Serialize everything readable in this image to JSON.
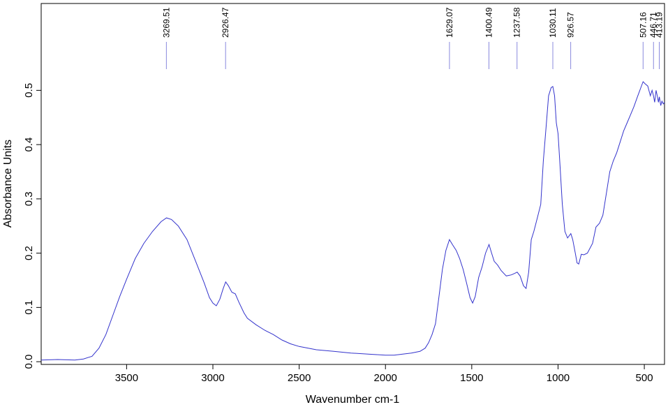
{
  "chart_data": {
    "type": "line",
    "xlabel": "Wavenumber cm-1",
    "ylabel": "Absorbance Units",
    "x_reversed": true,
    "xlim": [
      3995,
      383
    ],
    "ylim": [
      -0.005,
      0.66
    ],
    "x_ticks": [
      {
        "value": 3500,
        "label": "3500"
      },
      {
        "value": 3000,
        "label": "3000"
      },
      {
        "value": 2500,
        "label": "2500"
      },
      {
        "value": 2000,
        "label": "2000"
      },
      {
        "value": 1500,
        "label": "1500"
      },
      {
        "value": 1000,
        "label": "1000"
      },
      {
        "value": 500,
        "label": "500"
      }
    ],
    "y_ticks": [
      {
        "value": 0.0,
        "label": "0.0"
      },
      {
        "value": 0.1,
        "label": "0.1"
      },
      {
        "value": 0.2,
        "label": "0.2"
      },
      {
        "value": 0.3,
        "label": "0.3"
      },
      {
        "value": 0.4,
        "label": "0.4"
      },
      {
        "value": 0.5,
        "label": "0.5"
      }
    ],
    "peaks": [
      {
        "x": 3269.51,
        "label": "3269.51"
      },
      {
        "x": 2926.47,
        "label": "2926.47"
      },
      {
        "x": 1629.07,
        "label": "1629.07"
      },
      {
        "x": 1400.49,
        "label": "1400.49"
      },
      {
        "x": 1237.58,
        "label": "1237.58"
      },
      {
        "x": 1030.11,
        "label": "1030.11"
      },
      {
        "x": 926.57,
        "label": "926.57"
      },
      {
        "x": 507.16,
        "label": "507.16"
      },
      {
        "x": 446.71,
        "label": "446.71"
      },
      {
        "x": 413.19,
        "label": "413.19"
      }
    ],
    "series": [
      {
        "color": "#3333cc",
        "points": [
          [
            3995,
            0.003
          ],
          [
            3900,
            0.004
          ],
          [
            3800,
            0.003
          ],
          [
            3750,
            0.005
          ],
          [
            3700,
            0.01
          ],
          [
            3660,
            0.025
          ],
          [
            3620,
            0.05
          ],
          [
            3580,
            0.085
          ],
          [
            3540,
            0.12
          ],
          [
            3500,
            0.152
          ],
          [
            3450,
            0.19
          ],
          [
            3400,
            0.218
          ],
          [
            3350,
            0.24
          ],
          [
            3300,
            0.258
          ],
          [
            3269,
            0.265
          ],
          [
            3240,
            0.262
          ],
          [
            3200,
            0.25
          ],
          [
            3150,
            0.225
          ],
          [
            3100,
            0.185
          ],
          [
            3050,
            0.145
          ],
          [
            3020,
            0.118
          ],
          [
            3000,
            0.108
          ],
          [
            2980,
            0.103
          ],
          [
            2960,
            0.115
          ],
          [
            2940,
            0.135
          ],
          [
            2926,
            0.147
          ],
          [
            2910,
            0.14
          ],
          [
            2890,
            0.128
          ],
          [
            2870,
            0.125
          ],
          [
            2850,
            0.11
          ],
          [
            2820,
            0.09
          ],
          [
            2800,
            0.08
          ],
          [
            2750,
            0.068
          ],
          [
            2700,
            0.058
          ],
          [
            2650,
            0.05
          ],
          [
            2600,
            0.04
          ],
          [
            2550,
            0.033
          ],
          [
            2500,
            0.028
          ],
          [
            2400,
            0.022
          ],
          [
            2300,
            0.019
          ],
          [
            2200,
            0.016
          ],
          [
            2100,
            0.014
          ],
          [
            2000,
            0.012
          ],
          [
            1950,
            0.012
          ],
          [
            1900,
            0.014
          ],
          [
            1850,
            0.016
          ],
          [
            1800,
            0.019
          ],
          [
            1770,
            0.025
          ],
          [
            1750,
            0.035
          ],
          [
            1730,
            0.05
          ],
          [
            1710,
            0.07
          ],
          [
            1690,
            0.12
          ],
          [
            1670,
            0.17
          ],
          [
            1650,
            0.205
          ],
          [
            1629,
            0.225
          ],
          [
            1610,
            0.215
          ],
          [
            1590,
            0.205
          ],
          [
            1570,
            0.19
          ],
          [
            1550,
            0.17
          ],
          [
            1530,
            0.145
          ],
          [
            1510,
            0.118
          ],
          [
            1495,
            0.108
          ],
          [
            1480,
            0.12
          ],
          [
            1460,
            0.155
          ],
          [
            1440,
            0.175
          ],
          [
            1420,
            0.2
          ],
          [
            1400,
            0.216
          ],
          [
            1385,
            0.2
          ],
          [
            1370,
            0.185
          ],
          [
            1350,
            0.178
          ],
          [
            1330,
            0.168
          ],
          [
            1300,
            0.158
          ],
          [
            1270,
            0.16
          ],
          [
            1250,
            0.163
          ],
          [
            1237,
            0.165
          ],
          [
            1220,
            0.158
          ],
          [
            1200,
            0.14
          ],
          [
            1185,
            0.135
          ],
          [
            1170,
            0.165
          ],
          [
            1155,
            0.225
          ],
          [
            1140,
            0.24
          ],
          [
            1120,
            0.265
          ],
          [
            1100,
            0.29
          ],
          [
            1085,
            0.37
          ],
          [
            1070,
            0.43
          ],
          [
            1055,
            0.49
          ],
          [
            1040,
            0.505
          ],
          [
            1030,
            0.507
          ],
          [
            1020,
            0.49
          ],
          [
            1010,
            0.44
          ],
          [
            1000,
            0.42
          ],
          [
            990,
            0.37
          ],
          [
            975,
            0.29
          ],
          [
            960,
            0.24
          ],
          [
            945,
            0.228
          ],
          [
            935,
            0.232
          ],
          [
            926,
            0.236
          ],
          [
            915,
            0.225
          ],
          [
            900,
            0.2
          ],
          [
            890,
            0.182
          ],
          [
            880,
            0.18
          ],
          [
            865,
            0.198
          ],
          [
            850,
            0.197
          ],
          [
            830,
            0.2
          ],
          [
            800,
            0.218
          ],
          [
            780,
            0.248
          ],
          [
            760,
            0.255
          ],
          [
            740,
            0.27
          ],
          [
            720,
            0.31
          ],
          [
            700,
            0.35
          ],
          [
            680,
            0.37
          ],
          [
            660,
            0.385
          ],
          [
            640,
            0.405
          ],
          [
            620,
            0.425
          ],
          [
            600,
            0.44
          ],
          [
            580,
            0.455
          ],
          [
            560,
            0.47
          ],
          [
            540,
            0.488
          ],
          [
            520,
            0.505
          ],
          [
            507,
            0.516
          ],
          [
            495,
            0.512
          ],
          [
            480,
            0.508
          ],
          [
            465,
            0.49
          ],
          [
            455,
            0.5
          ],
          [
            447,
            0.49
          ],
          [
            440,
            0.478
          ],
          [
            432,
            0.5
          ],
          [
            425,
            0.49
          ],
          [
            418,
            0.478
          ],
          [
            413,
            0.488
          ],
          [
            405,
            0.472
          ],
          [
            398,
            0.48
          ],
          [
            390,
            0.475
          ],
          [
            383,
            0.478
          ]
        ]
      }
    ]
  }
}
